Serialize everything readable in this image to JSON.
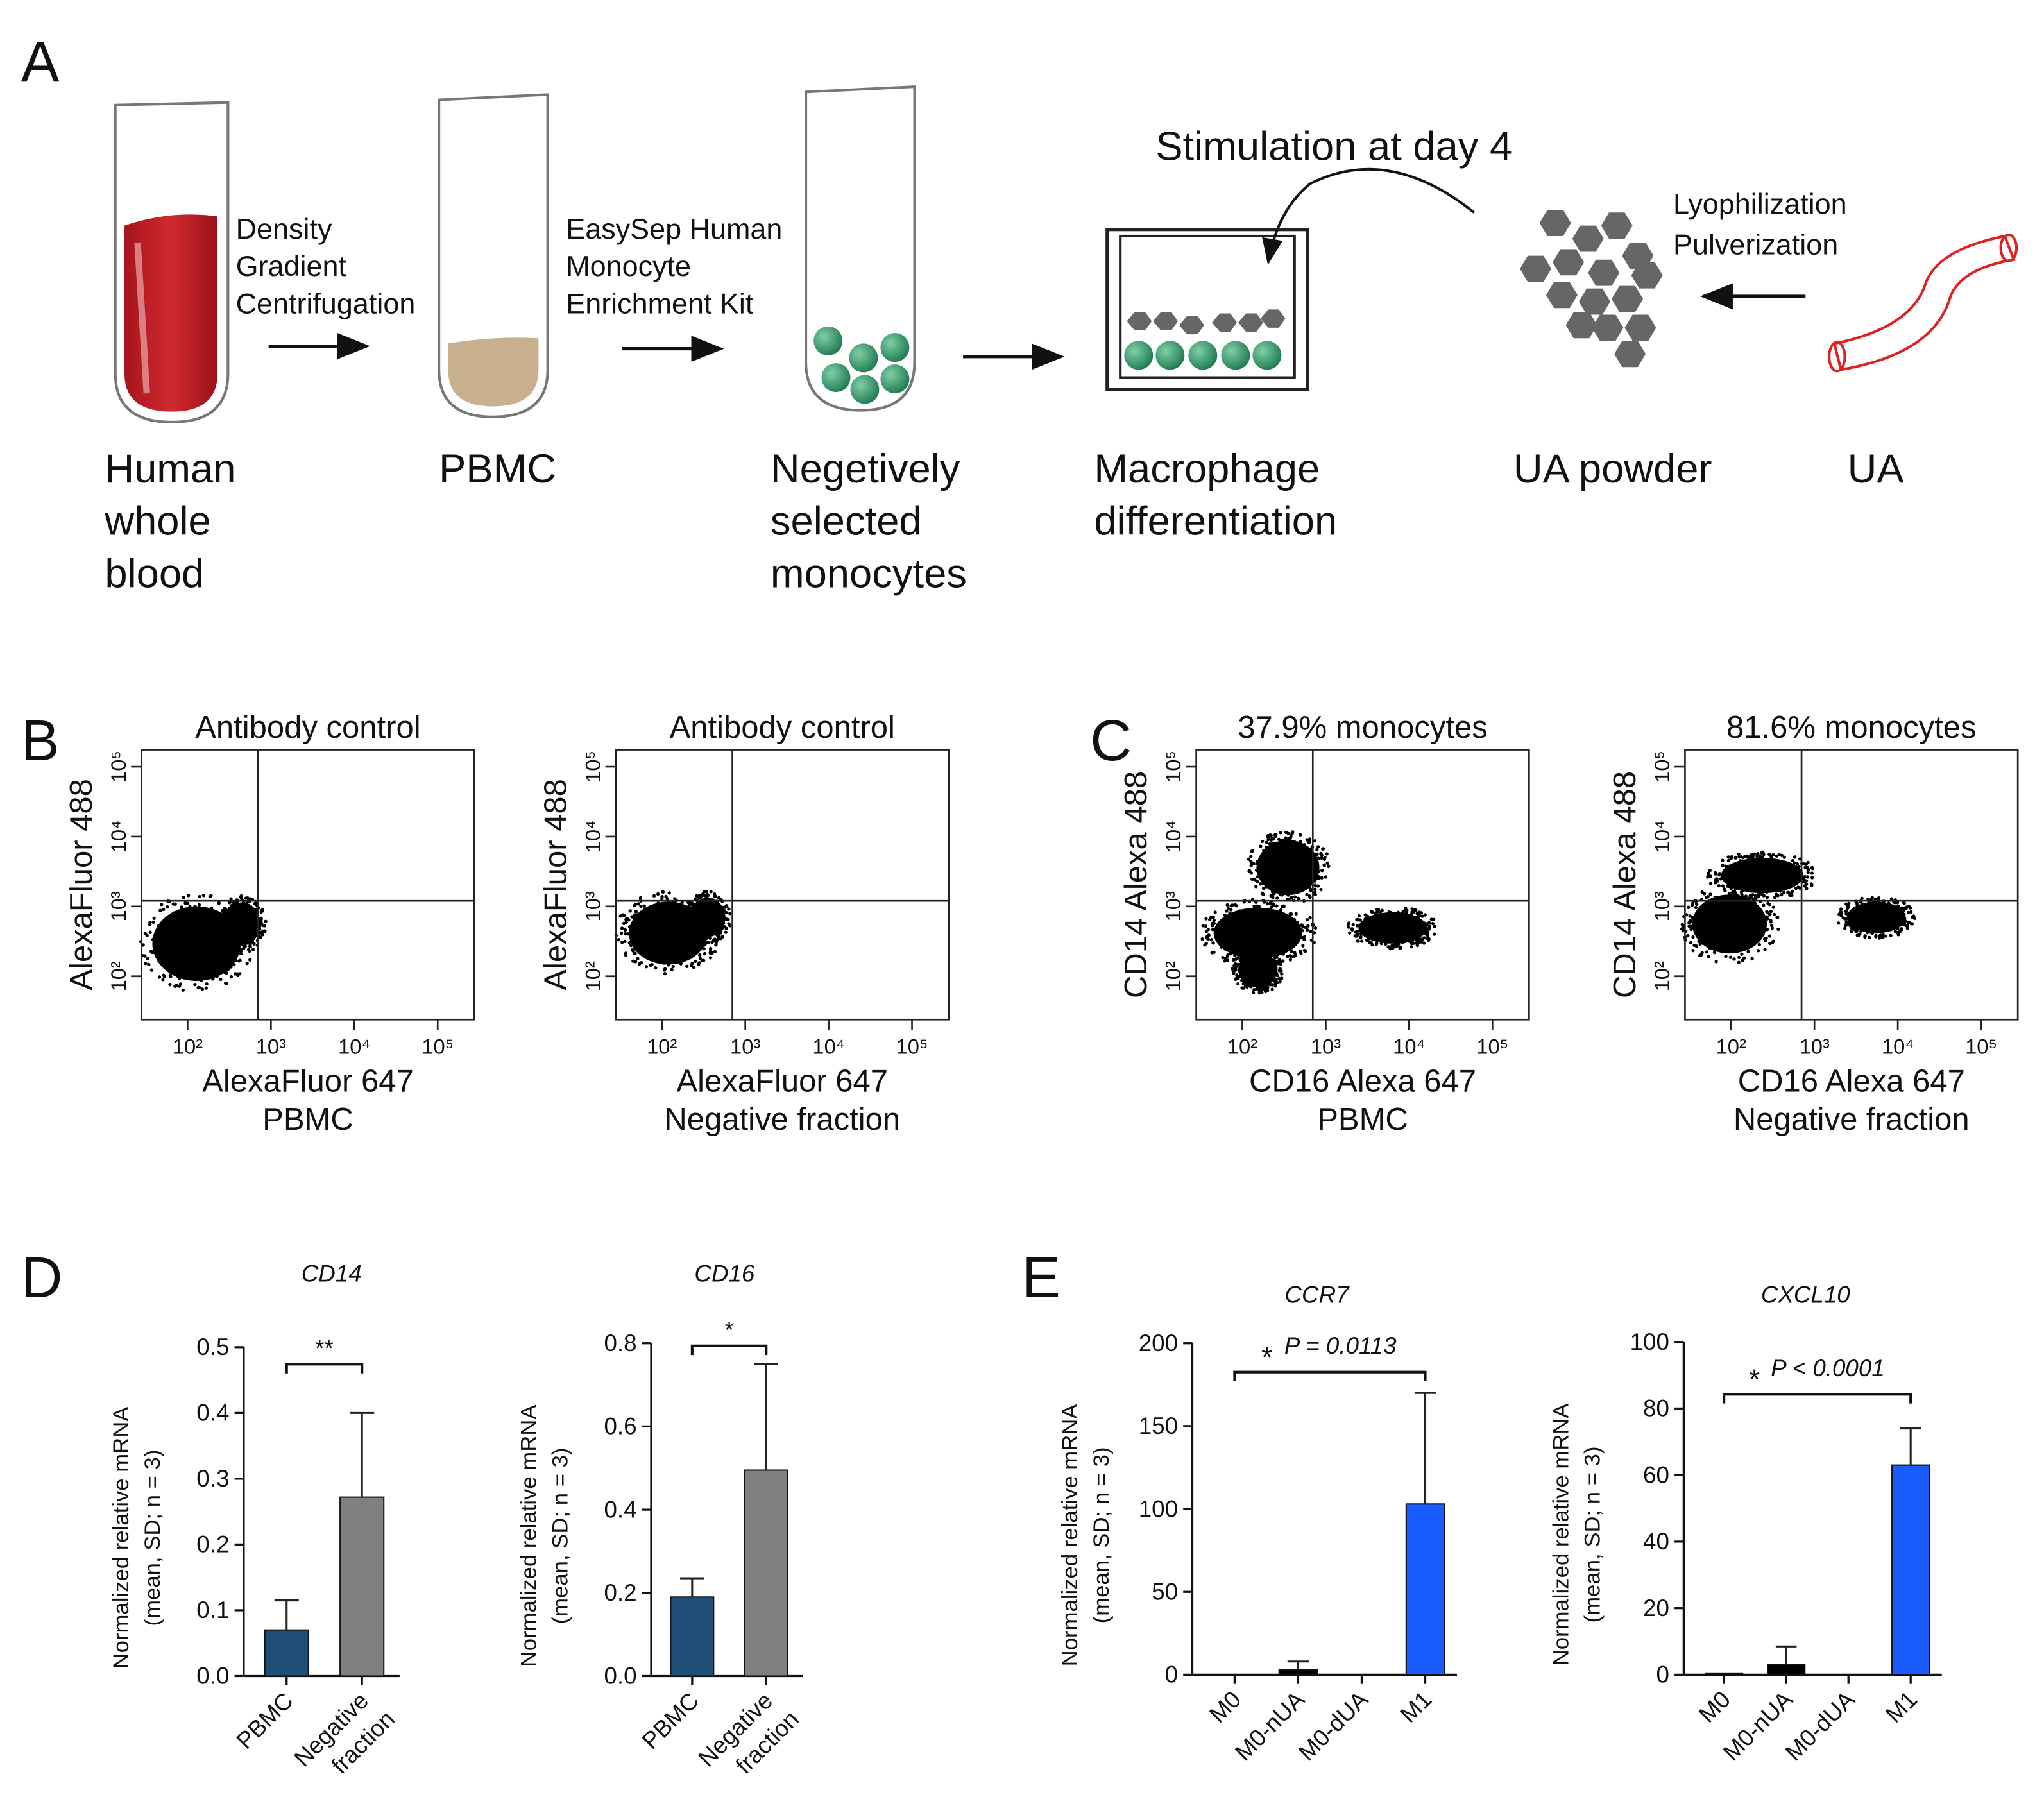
{
  "panel_labels": [
    "A",
    "B",
    "C",
    "D",
    "E"
  ],
  "diagram": {
    "step_labels": [
      [
        "Human",
        "whole",
        "blood"
      ],
      [
        "PBMC"
      ],
      [
        "Negetively",
        "selected",
        "monocytes"
      ],
      [
        "Macrophage",
        "differentiation"
      ],
      [
        "UA powder"
      ],
      [
        "UA"
      ]
    ],
    "arrow_labels": [
      [
        "Density",
        "Gradient",
        "Centrifugation"
      ],
      [
        "EasySep Human",
        "Monocyte",
        "Enrichment Kit"
      ],
      [
        "Lyophilization",
        "Pulverization"
      ]
    ],
    "stimulation": "Stimulation at day 4"
  },
  "flow_plots": [
    {
      "title": "Antibody control",
      "x_label": "AlexaFluor 647",
      "sample": "PBMC",
      "y_label": "AlexaFluor 488",
      "log": true,
      "xlim": [
        28,
        275000
      ],
      "ylim": [
        24,
        175000
      ],
      "xticks": [
        {
          "value": 100,
          "label": "10²"
        },
        {
          "value": 1000,
          "label": "10³"
        },
        {
          "value": 10000,
          "label": "10⁴"
        },
        {
          "value": 100000,
          "label": "10⁵"
        }
      ],
      "yticks": [
        {
          "value": 100,
          "label": "10²"
        },
        {
          "value": 1000,
          "label": "10³"
        },
        {
          "value": 10000,
          "label": "10⁴"
        },
        {
          "value": 100000,
          "label": "10⁵"
        }
      ],
      "gate": {
        "x": 700,
        "y": 1200
      }
    },
    {
      "title": "Antibody control",
      "x_label": "AlexaFluor 647",
      "sample": "Negative fraction",
      "y_label": "AlexaFluor 488",
      "log": true,
      "xlim": [
        28,
        275000
      ],
      "ylim": [
        24,
        175000
      ],
      "xticks": [
        {
          "value": 100,
          "label": "10²"
        },
        {
          "value": 1000,
          "label": "10³"
        },
        {
          "value": 10000,
          "label": "10⁴"
        },
        {
          "value": 100000,
          "label": "10⁵"
        }
      ],
      "yticks": [
        {
          "value": 100,
          "label": "10²"
        },
        {
          "value": 1000,
          "label": "10³"
        },
        {
          "value": 10000,
          "label": "10⁴"
        },
        {
          "value": 100000,
          "label": "10⁵"
        }
      ],
      "gate": {
        "x": 700,
        "y": 1200
      }
    },
    {
      "title": "37.9% monocytes",
      "x_label": "CD16 Alexa 647",
      "sample": "PBMC",
      "y_label": "CD14 Alexa 488",
      "log": true,
      "xlim": [
        28,
        275000
      ],
      "ylim": [
        24,
        175000
      ],
      "xticks": [
        {
          "value": 100,
          "label": "10²"
        },
        {
          "value": 1000,
          "label": "10³"
        },
        {
          "value": 10000,
          "label": "10⁴"
        },
        {
          "value": 100000,
          "label": "10⁵"
        }
      ],
      "yticks": [
        {
          "value": 100,
          "label": "10²"
        },
        {
          "value": 1000,
          "label": "10³"
        },
        {
          "value": 10000,
          "label": "10⁴"
        },
        {
          "value": 100000,
          "label": "10⁵"
        }
      ],
      "gate": {
        "x": 700,
        "y": 1200
      }
    },
    {
      "title": "81.6% monocytes",
      "x_label": "CD16 Alexa 647",
      "sample": "Negative fraction",
      "y_label": "CD14 Alexa 488",
      "log": true,
      "xlim": [
        28,
        275000
      ],
      "ylim": [
        24,
        175000
      ],
      "xticks": [
        {
          "value": 100,
          "label": "10²"
        },
        {
          "value": 1000,
          "label": "10³"
        },
        {
          "value": 10000,
          "label": "10⁴"
        },
        {
          "value": 100000,
          "label": "10⁵"
        }
      ],
      "yticks": [
        {
          "value": 100,
          "label": "10²"
        },
        {
          "value": 1000,
          "label": "10³"
        },
        {
          "value": 10000,
          "label": "10⁴"
        },
        {
          "value": 100000,
          "label": "10⁵"
        }
      ],
      "gate": {
        "x": 700,
        "y": 1200
      }
    }
  ],
  "chart_data": [
    {
      "type": "bar",
      "title": "CD14",
      "y_label": [
        "Normalized relative mRNA",
        "(mean, SD; n = 3)"
      ],
      "categories": [
        [
          "PBMC"
        ],
        [
          "Negative",
          "fraction"
        ]
      ],
      "values": [
        0.07,
        0.272
      ],
      "errors": [
        0.045,
        0.128
      ],
      "colors": [
        "#1f4e79",
        "#808080"
      ],
      "ylim": [
        0,
        0.5
      ],
      "yticks": [
        {
          "value": 0,
          "label": "0.0"
        },
        0.1,
        0.2,
        0.3,
        0.4,
        0.5
      ],
      "significance": "**"
    },
    {
      "type": "bar",
      "title": "CD16",
      "y_label": [
        "Normalized relative mRNA",
        "(mean, SD; n = 3)"
      ],
      "categories": [
        [
          "PBMC"
        ],
        [
          "Negative",
          "fraction"
        ]
      ],
      "values": [
        0.19,
        0.495
      ],
      "errors": [
        0.045,
        0.255
      ],
      "colors": [
        "#1f4e79",
        "#808080"
      ],
      "ylim": [
        0,
        0.8
      ],
      "yticks": [
        {
          "value": 0,
          "label": "0.0"
        },
        0.2,
        0.4,
        0.6,
        0.8
      ],
      "significance": "*"
    },
    {
      "type": "bar",
      "title": "CCR7",
      "y_label": [
        "Normalized relative mRNA",
        "(mean, SD; n = 3)"
      ],
      "categories": [
        [
          "M0"
        ],
        [
          "M0-nUA"
        ],
        [
          "M0-dUA"
        ],
        [
          "M1"
        ]
      ],
      "values": [
        0,
        3,
        0,
        103
      ],
      "errors": [
        null,
        5,
        null,
        67
      ],
      "colors": [
        "#000000",
        "#000000",
        "#000000",
        "#1a5cff"
      ],
      "ylim": [
        0,
        200
      ],
      "yticks": [
        0,
        50,
        100,
        150,
        200
      ],
      "significance": "*",
      "p_label": "P = 0.0113"
    },
    {
      "type": "bar",
      "title": "CXCL10",
      "y_label": [
        "Normalized relative mRNA",
        "(mean, SD; n = 3)"
      ],
      "categories": [
        [
          "M0"
        ],
        [
          "M0-nUA"
        ],
        [
          "M0-dUA"
        ],
        [
          "M1"
        ]
      ],
      "values": [
        0.5,
        3,
        0,
        63
      ],
      "errors": [
        null,
        5.5,
        null,
        11
      ],
      "colors": [
        "#000000",
        "#000000",
        "#000000",
        "#1a5cff"
      ],
      "ylim": [
        0,
        100
      ],
      "yticks": [
        0,
        20,
        40,
        60,
        80,
        100
      ],
      "significance": "*",
      "p_label": "P < 0.0001"
    }
  ]
}
